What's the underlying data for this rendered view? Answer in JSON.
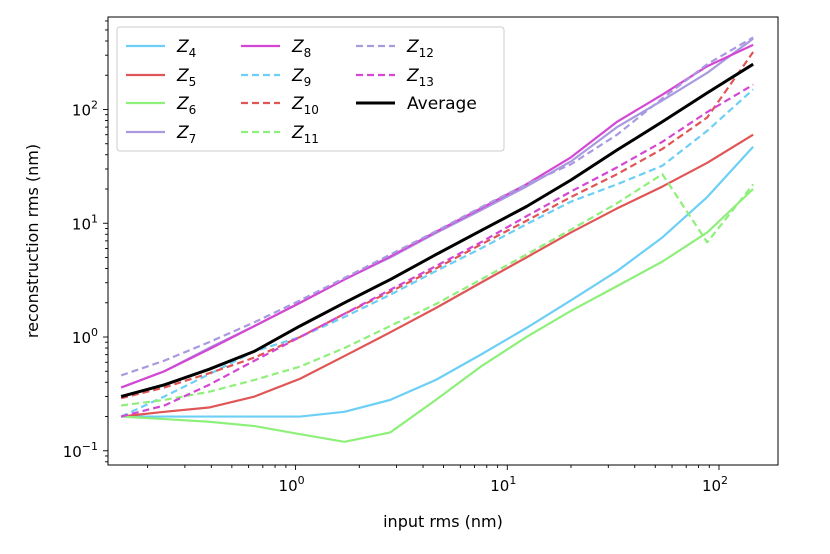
{
  "chart_data": {
    "type": "line",
    "xscale": "log",
    "yscale": "log",
    "xlim": [
      0.13,
      190
    ],
    "ylim": [
      0.075,
      650
    ],
    "xlabel": "input rms (nm)",
    "ylabel": "reconstruction rms (nm)",
    "x_ticks": [
      {
        "value": 1,
        "base": "10",
        "exp": "0"
      },
      {
        "value": 10,
        "base": "10",
        "exp": "1"
      },
      {
        "value": 100,
        "base": "10",
        "exp": "2"
      }
    ],
    "y_ticks": [
      {
        "value": 0.1,
        "base": "10",
        "exp": "−1"
      },
      {
        "value": 1,
        "base": "10",
        "exp": "0"
      },
      {
        "value": 10,
        "base": "10",
        "exp": "1"
      },
      {
        "value": 100,
        "base": "10",
        "exp": "2"
      }
    ],
    "x": [
      0.15,
      0.24,
      0.39,
      0.64,
      1.05,
      1.7,
      2.8,
      4.6,
      7.5,
      12.3,
      20,
      33,
      54,
      88,
      145
    ],
    "series": [
      {
        "name": "Z",
        "sub": "4",
        "color": "#6dcff6",
        "dash": false,
        "values": [
          0.2,
          0.2,
          0.2,
          0.2,
          0.2,
          0.22,
          0.28,
          0.42,
          0.7,
          1.2,
          2.1,
          3.8,
          7.5,
          17,
          47
        ]
      },
      {
        "name": "Z",
        "sub": "5",
        "color": "#e05555",
        "dash": false,
        "values": [
          0.2,
          0.22,
          0.24,
          0.3,
          0.43,
          0.68,
          1.1,
          1.8,
          3.0,
          5.0,
          8.3,
          13.5,
          21,
          34,
          60
        ]
      },
      {
        "name": "Z",
        "sub": "6",
        "color": "#8ef07a",
        "dash": false,
        "values": [
          0.2,
          0.19,
          0.18,
          0.165,
          0.14,
          0.12,
          0.145,
          0.28,
          0.55,
          1.0,
          1.7,
          2.8,
          4.6,
          8.3,
          20
        ]
      },
      {
        "name": "Z",
        "sub": "7",
        "color": "#a99ae0",
        "dash": false,
        "values": [
          0.36,
          0.5,
          0.8,
          1.25,
          2.0,
          3.2,
          5.0,
          8.2,
          13,
          21,
          35,
          70,
          120,
          210,
          420
        ]
      },
      {
        "name": "Z",
        "sub": "8",
        "color": "#d447d4",
        "dash": false,
        "values": [
          0.36,
          0.5,
          0.78,
          1.25,
          2.0,
          3.2,
          5.1,
          8.4,
          13.5,
          22,
          38,
          78,
          135,
          240,
          370
        ]
      },
      {
        "name": "Z",
        "sub": "9",
        "color": "#6dcff6",
        "dash": true,
        "values": [
          0.2,
          0.3,
          0.47,
          0.75,
          1.0,
          1.5,
          2.35,
          3.8,
          6.0,
          9.8,
          15.5,
          22,
          32,
          65,
          150
        ]
      },
      {
        "name": "Z",
        "sub": "10",
        "color": "#e05555",
        "dash": true,
        "values": [
          0.29,
          0.36,
          0.48,
          0.66,
          1.0,
          1.6,
          2.5,
          4.0,
          6.5,
          10.5,
          17,
          27,
          45,
          85,
          320
        ]
      },
      {
        "name": "Z",
        "sub": "11",
        "color": "#8ef07a",
        "dash": true,
        "values": [
          0.25,
          0.28,
          0.33,
          0.42,
          0.55,
          0.8,
          1.25,
          1.95,
          3.2,
          5.3,
          8.8,
          15,
          27,
          6.8,
          22
        ]
      },
      {
        "name": "Z",
        "sub": "12",
        "color": "#a99ae0",
        "dash": true,
        "values": [
          0.46,
          0.62,
          0.9,
          1.35,
          2.1,
          3.3,
          5.3,
          8.5,
          13.8,
          22,
          33,
          60,
          125,
          250,
          430
        ]
      },
      {
        "name": "Z",
        "sub": "13",
        "color": "#d447d4",
        "dash": true,
        "values": [
          0.2,
          0.25,
          0.38,
          0.62,
          1.0,
          1.6,
          2.6,
          4.2,
          6.8,
          11.5,
          19,
          31,
          52,
          95,
          165
        ]
      },
      {
        "name": "Average",
        "sub": "",
        "color": "#000000",
        "dash": false,
        "thick": true,
        "values": [
          0.3,
          0.38,
          0.52,
          0.75,
          1.25,
          2.0,
          3.2,
          5.3,
          8.6,
          14,
          24,
          44,
          78,
          140,
          250
        ]
      }
    ]
  }
}
